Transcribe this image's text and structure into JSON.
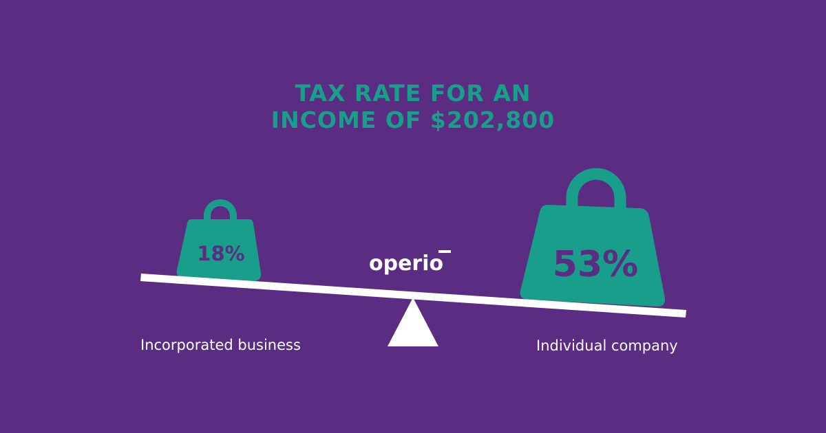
{
  "title": {
    "line1": "TAX RATE FOR AN",
    "line2": "INCOME OF $202,800"
  },
  "brand": {
    "logo_text": "operio"
  },
  "weights": [
    {
      "label": "18%",
      "value_percent": 18
    },
    {
      "label": "53%",
      "value_percent": 53
    }
  ],
  "labels": {
    "left": "Incorporated business",
    "right": "Individual company"
  },
  "colors": {
    "background": "#5a2d82",
    "accent": "#1a9e8c",
    "weight_text": "#5a2d82",
    "white": "#ffffff"
  },
  "icons": {
    "scale": "seesaw-balance-icon",
    "weight": "kettlebell-weight-icon"
  }
}
